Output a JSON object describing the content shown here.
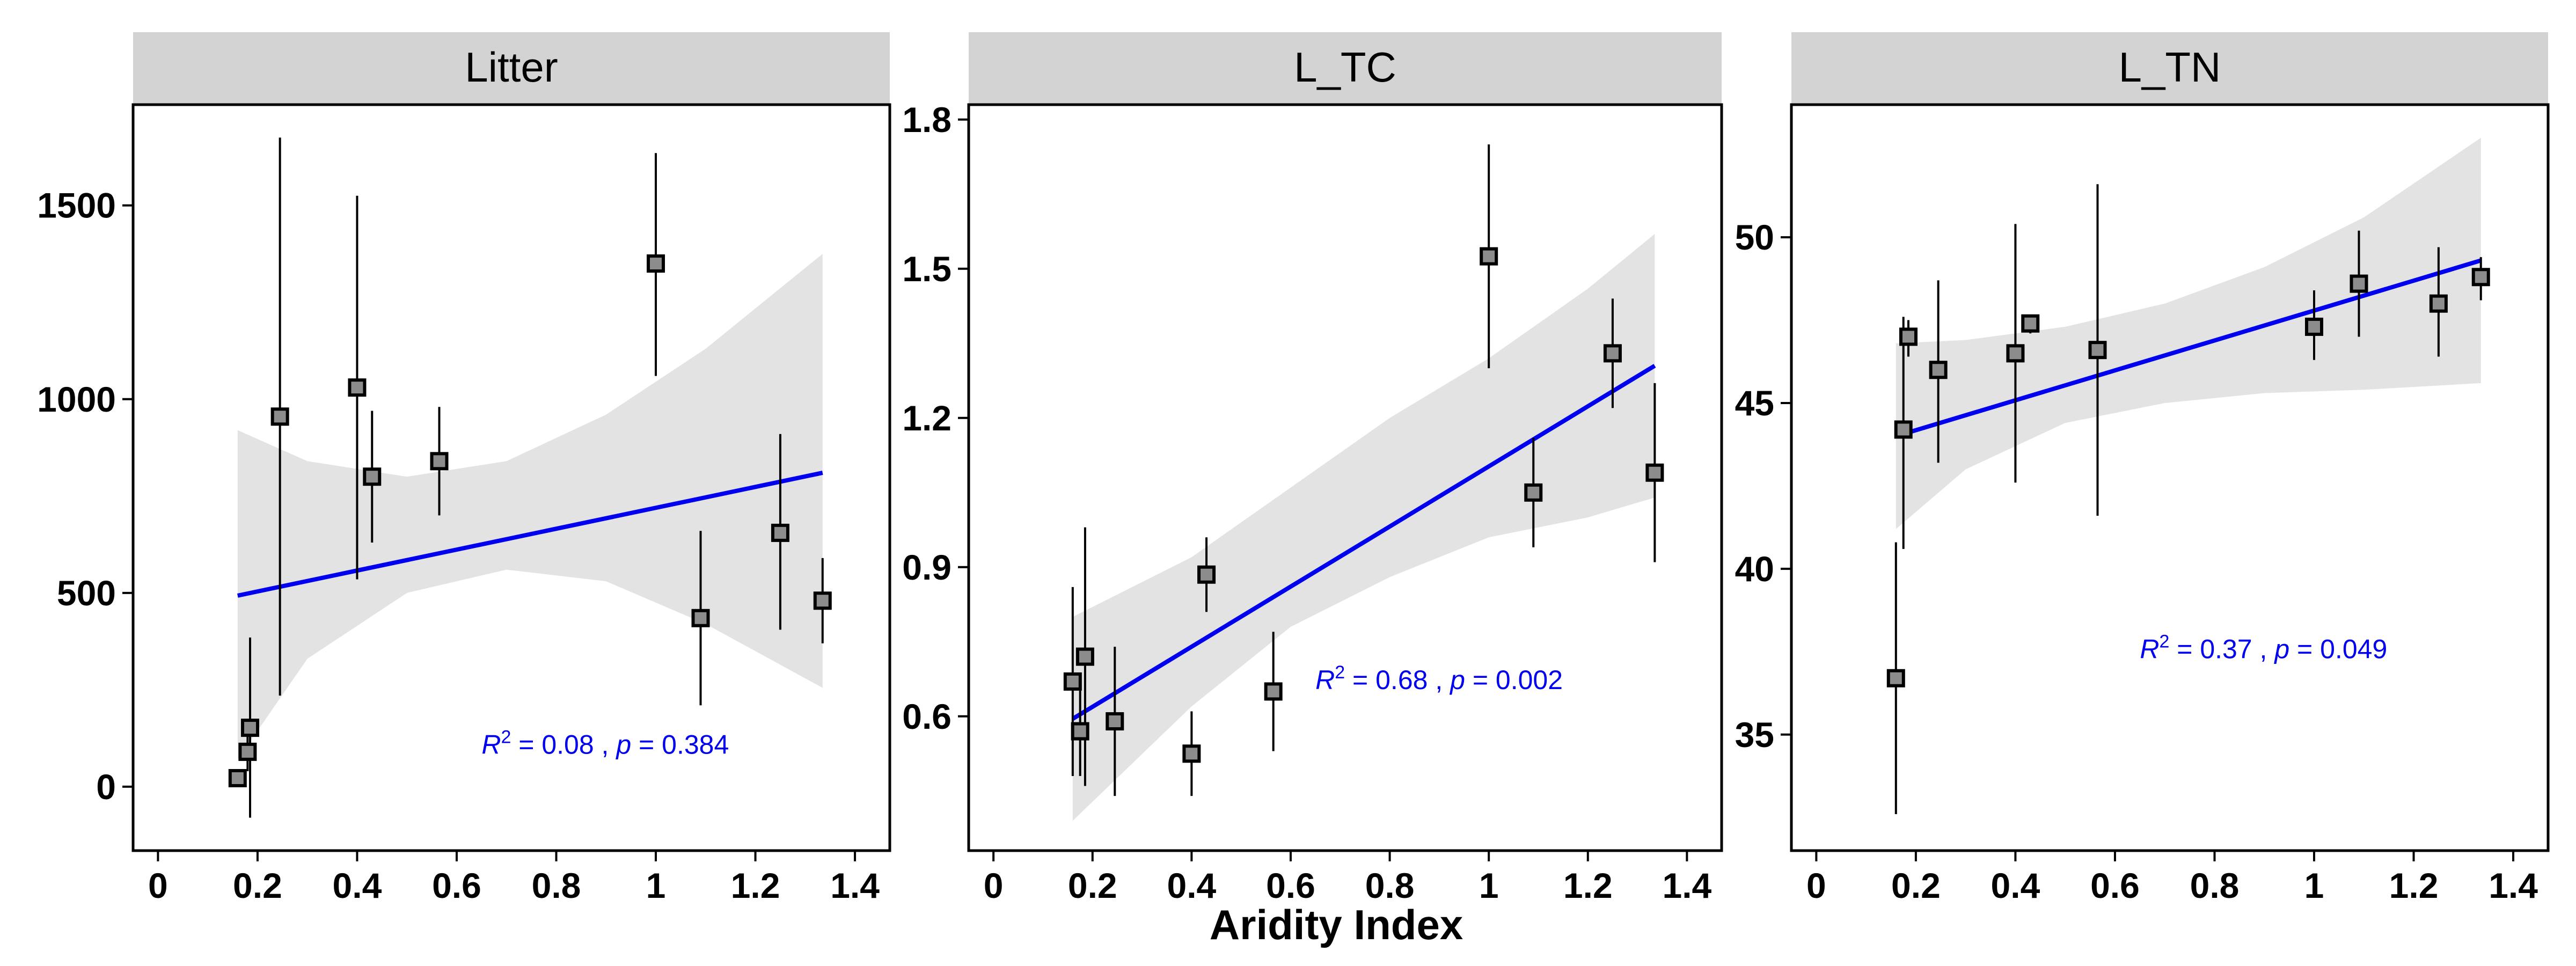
{
  "chart_data": {
    "type": "scatter",
    "xlabel": "Aridity Index",
    "x_ticks": [
      "0",
      "0.2",
      "0.4",
      "0.6",
      "0.8",
      "1",
      "1.2",
      "1.4"
    ],
    "x_tick_values": [
      0,
      0.2,
      0.4,
      0.6,
      0.8,
      1.0,
      1.2,
      1.4
    ],
    "xlim": [
      -0.05,
      1.47
    ],
    "colors": {
      "point_fill": "#8c8c8c",
      "point_stroke": "#000000",
      "fit_line": "#0000ee",
      "ci_band": "#e3e3e3",
      "strip": "#d3d3d3"
    },
    "panels": [
      {
        "title": "Litter",
        "ylim": [
          -165,
          1760
        ],
        "y_ticks": [
          "0",
          "500",
          "1000",
          "1500"
        ],
        "y_tick_values": [
          0,
          500,
          1000,
          1500
        ],
        "points": [
          {
            "x": 0.16,
            "y": 22,
            "lo": 22,
            "hi": 22
          },
          {
            "x": 0.18,
            "y": 90,
            "lo": 40,
            "hi": 150
          },
          {
            "x": 0.185,
            "y": 152,
            "lo": -80,
            "hi": 385
          },
          {
            "x": 0.245,
            "y": 955,
            "lo": 235,
            "hi": 1675
          },
          {
            "x": 0.4,
            "y": 1030,
            "lo": 535,
            "hi": 1525
          },
          {
            "x": 0.43,
            "y": 800,
            "lo": 630,
            "hi": 970
          },
          {
            "x": 0.565,
            "y": 840,
            "lo": 700,
            "hi": 980
          },
          {
            "x": 1.0,
            "y": 1350,
            "lo": 1060,
            "hi": 1635
          },
          {
            "x": 1.09,
            "y": 435,
            "lo": 210,
            "hi": 660
          },
          {
            "x": 1.25,
            "y": 655,
            "lo": 405,
            "hi": 910
          },
          {
            "x": 1.335,
            "y": 480,
            "lo": 370,
            "hi": 590
          }
        ],
        "fit": {
          "x": [
            0.16,
            1.335
          ],
          "y": [
            493,
            810
          ]
        },
        "ci_upper": [
          [
            0.16,
            920
          ],
          [
            0.3,
            840
          ],
          [
            0.5,
            800
          ],
          [
            0.7,
            840
          ],
          [
            0.9,
            960
          ],
          [
            1.1,
            1130
          ],
          [
            1.335,
            1375
          ]
        ],
        "ci_lower": [
          [
            0.16,
            70
          ],
          [
            0.3,
            330
          ],
          [
            0.5,
            500
          ],
          [
            0.7,
            560
          ],
          [
            0.9,
            530
          ],
          [
            1.1,
            420
          ],
          [
            1.335,
            255
          ]
        ],
        "annotation": {
          "r2_value": "0.08",
          "p_value": "0.384",
          "x": 0.65,
          "y": 85
        }
      },
      {
        "title": "L_TC",
        "ylim": [
          0.33,
          1.83
        ],
        "y_ticks": [
          "0.6",
          "0.9",
          "1.2",
          "1.5",
          "1.8"
        ],
        "y_tick_values": [
          0.6,
          0.9,
          1.2,
          1.5,
          1.8
        ],
        "points": [
          {
            "x": 0.16,
            "y": 0.67,
            "lo": 0.48,
            "hi": 0.86
          },
          {
            "x": 0.175,
            "y": 0.57,
            "lo": 0.48,
            "hi": 0.66
          },
          {
            "x": 0.185,
            "y": 0.72,
            "lo": 0.46,
            "hi": 0.98
          },
          {
            "x": 0.245,
            "y": 0.59,
            "lo": 0.44,
            "hi": 0.74
          },
          {
            "x": 0.4,
            "y": 0.525,
            "lo": 0.44,
            "hi": 0.61
          },
          {
            "x": 0.43,
            "y": 0.885,
            "lo": 0.81,
            "hi": 0.96
          },
          {
            "x": 0.565,
            "y": 0.65,
            "lo": 0.53,
            "hi": 0.77
          },
          {
            "x": 1.0,
            "y": 1.525,
            "lo": 1.3,
            "hi": 1.75
          },
          {
            "x": 1.09,
            "y": 1.05,
            "lo": 0.94,
            "hi": 1.16
          },
          {
            "x": 1.25,
            "y": 1.33,
            "lo": 1.22,
            "hi": 1.44
          },
          {
            "x": 1.335,
            "y": 1.09,
            "lo": 0.91,
            "hi": 1.27
          }
        ],
        "fit": {
          "x": [
            0.16,
            1.335
          ],
          "y": [
            0.595,
            1.305
          ]
        },
        "ci_upper": [
          [
            0.16,
            0.8
          ],
          [
            0.4,
            0.92
          ],
          [
            0.6,
            1.06
          ],
          [
            0.8,
            1.2
          ],
          [
            1.0,
            1.32
          ],
          [
            1.2,
            1.46
          ],
          [
            1.335,
            1.57
          ]
        ],
        "ci_lower": [
          [
            0.16,
            0.39
          ],
          [
            0.4,
            0.62
          ],
          [
            0.6,
            0.78
          ],
          [
            0.8,
            0.88
          ],
          [
            1.0,
            0.96
          ],
          [
            1.2,
            1.0
          ],
          [
            1.335,
            1.04
          ]
        ],
        "annotation": {
          "r2_value": "0.68",
          "p_value": "0.002",
          "x": 0.65,
          "y": 0.655
        }
      },
      {
        "title": "L_TN",
        "ylim": [
          31.5,
          54.0
        ],
        "y_ticks": [
          "35",
          "40",
          "45",
          "50"
        ],
        "y_tick_values": [
          35,
          40,
          45,
          50
        ],
        "points": [
          {
            "x": 0.16,
            "y": 36.7,
            "lo": 32.6,
            "hi": 40.8
          },
          {
            "x": 0.175,
            "y": 44.2,
            "lo": 40.6,
            "hi": 47.6
          },
          {
            "x": 0.185,
            "y": 47.0,
            "lo": 46.4,
            "hi": 47.5
          },
          {
            "x": 0.245,
            "y": 46.0,
            "lo": 43.2,
            "hi": 48.7
          },
          {
            "x": 0.4,
            "y": 46.5,
            "lo": 42.6,
            "hi": 50.4
          },
          {
            "x": 0.43,
            "y": 47.4,
            "lo": 47.1,
            "hi": 47.6
          },
          {
            "x": 0.565,
            "y": 46.6,
            "lo": 41.6,
            "hi": 51.6
          },
          {
            "x": 1.0,
            "y": 47.3,
            "lo": 46.3,
            "hi": 48.4
          },
          {
            "x": 1.09,
            "y": 48.6,
            "lo": 47.0,
            "hi": 50.2
          },
          {
            "x": 1.25,
            "y": 48.0,
            "lo": 46.4,
            "hi": 49.7
          },
          {
            "x": 1.335,
            "y": 48.8,
            "lo": 48.1,
            "hi": 49.4
          }
        ],
        "fit": {
          "x": [
            0.16,
            1.335
          ],
          "y": [
            44.0,
            49.3
          ]
        },
        "ci_upper": [
          [
            0.16,
            46.8
          ],
          [
            0.3,
            46.9
          ],
          [
            0.5,
            47.3
          ],
          [
            0.7,
            48.0
          ],
          [
            0.9,
            49.1
          ],
          [
            1.1,
            50.6
          ],
          [
            1.335,
            53.0
          ]
        ],
        "ci_lower": [
          [
            0.16,
            41.2
          ],
          [
            0.3,
            43.0
          ],
          [
            0.5,
            44.4
          ],
          [
            0.7,
            45.0
          ],
          [
            0.9,
            45.3
          ],
          [
            1.1,
            45.4
          ],
          [
            1.335,
            45.6
          ]
        ],
        "annotation": {
          "r2_value": "0.37",
          "p_value": "0.049",
          "x": 0.65,
          "y": 37.3
        }
      }
    ]
  }
}
